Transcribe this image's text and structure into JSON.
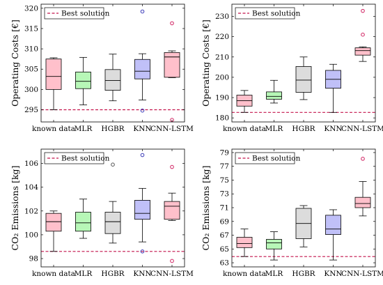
{
  "chart_data": [
    {
      "type": "box",
      "ylabel": "Operating Costs [€]",
      "categories": [
        "known data",
        "MLR",
        "HGBR",
        "KNN",
        "CNN-LSTM"
      ],
      "yticks": [
        295,
        300,
        305,
        310,
        315,
        320
      ],
      "ylim": [
        292,
        321
      ],
      "reference": {
        "name": "Best solution",
        "value": 295
      },
      "boxes": [
        {
          "min": 295.0,
          "q1": 300.0,
          "median": 303.2,
          "q3": 307.5,
          "max": 307.8,
          "outliers": []
        },
        {
          "min": 296.2,
          "q1": 300.2,
          "median": 302.0,
          "q3": 304.3,
          "max": 307.9,
          "outliers": []
        },
        {
          "min": 297.2,
          "q1": 299.8,
          "median": 302.2,
          "q3": 304.9,
          "max": 308.7,
          "outliers": []
        },
        {
          "min": 297.4,
          "q1": 302.6,
          "median": 304.5,
          "q3": 307.4,
          "max": 308.8,
          "outliers": [
            319.2,
            294.8
          ]
        },
        {
          "min": 302.9,
          "q1": 303.0,
          "median": 308.0,
          "q3": 309.1,
          "max": 309.5,
          "outliers": [
            316.3,
            292.5
          ]
        }
      ]
    },
    {
      "type": "box",
      "ylabel": "Operating Costs [€]",
      "categories": [
        "known data",
        "MLR",
        "HGBR",
        "KNN",
        "CNN-LSTM"
      ],
      "yticks": [
        180,
        190,
        200,
        210,
        220,
        230
      ],
      "ylim": [
        178,
        236
      ],
      "reference": {
        "name": "Best solution",
        "value": 182.7
      },
      "boxes": [
        {
          "min": 182.7,
          "q1": 185.8,
          "median": 188.5,
          "q3": 191.2,
          "max": 193.5,
          "outliers": []
        },
        {
          "min": 187.3,
          "q1": 189.2,
          "median": 190.6,
          "q3": 192.8,
          "max": 198.5,
          "outliers": []
        },
        {
          "min": 189.0,
          "q1": 192.6,
          "median": 198.6,
          "q3": 205.3,
          "max": 210.0,
          "outliers": []
        },
        {
          "min": 182.7,
          "q1": 194.6,
          "median": 199.0,
          "q3": 203.4,
          "max": 206.4,
          "outliers": []
        },
        {
          "min": 207.8,
          "q1": 210.9,
          "median": 213.1,
          "q3": 214.5,
          "max": 215.0,
          "outliers": [
            232.7,
            221.0
          ]
        }
      ]
    },
    {
      "type": "box",
      "ylabel": "CO₂ Emissions [kg]",
      "categories": [
        "known data",
        "MLR",
        "HGBR",
        "KNN",
        "CNN-LSTM"
      ],
      "yticks": [
        98,
        100,
        102,
        104,
        106
      ],
      "ylim": [
        97.3,
        107.2
      ],
      "reference": {
        "name": "Best solution",
        "value": 98.6
      },
      "boxes": [
        {
          "min": 98.6,
          "q1": 100.3,
          "median": 101.1,
          "q3": 101.8,
          "max": 102.0,
          "outliers": []
        },
        {
          "min": 99.7,
          "q1": 100.3,
          "median": 101.0,
          "q3": 101.9,
          "max": 103.0,
          "outliers": []
        },
        {
          "min": 99.3,
          "q1": 100.1,
          "median": 101.1,
          "q3": 101.9,
          "max": 102.8,
          "outliers": [
            105.9
          ]
        },
        {
          "min": 99.4,
          "q1": 101.3,
          "median": 101.8,
          "q3": 102.9,
          "max": 103.9,
          "outliers": [
            106.7,
            98.6
          ]
        },
        {
          "min": 101.2,
          "q1": 101.3,
          "median": 102.4,
          "q3": 102.8,
          "max": 103.5,
          "outliers": [
            105.7,
            97.8
          ]
        }
      ]
    },
    {
      "type": "box",
      "ylabel": "CO₂ Emissions [kg]",
      "categories": [
        "known data",
        "MLR",
        "HGBR",
        "KNN",
        "CNN-LSTM"
      ],
      "yticks": [
        63,
        65,
        67,
        69,
        71,
        73,
        75,
        77,
        79
      ],
      "ylim": [
        62.4,
        79.5
      ],
      "reference": {
        "name": "Best solution",
        "value": 63.9
      },
      "boxes": [
        {
          "min": 63.9,
          "q1": 65.2,
          "median": 65.8,
          "q3": 66.7,
          "max": 67.9,
          "outliers": []
        },
        {
          "min": 63.4,
          "q1": 65.0,
          "median": 65.9,
          "q3": 66.4,
          "max": 67.5,
          "outliers": []
        },
        {
          "min": 65.3,
          "q1": 66.5,
          "median": 68.7,
          "q3": 70.9,
          "max": 71.3,
          "outliers": []
        },
        {
          "min": 63.4,
          "q1": 67.1,
          "median": 67.9,
          "q3": 69.9,
          "max": 70.7,
          "outliers": []
        },
        {
          "min": 69.8,
          "q1": 71.0,
          "median": 71.6,
          "q3": 72.5,
          "max": 74.8,
          "outliers": [
            78.1
          ]
        }
      ]
    }
  ],
  "styles": {
    "fills": [
      "#ffc0cb",
      "#b7f7b7",
      "#dcdcdc",
      "#c0c0f8",
      "#ffc0cb"
    ],
    "outlier_strokes": [
      "#d02060",
      "#2a9a2a",
      "#555555",
      "#3a3ab8",
      "#d02060"
    ],
    "reference_color": "#c4144c"
  }
}
